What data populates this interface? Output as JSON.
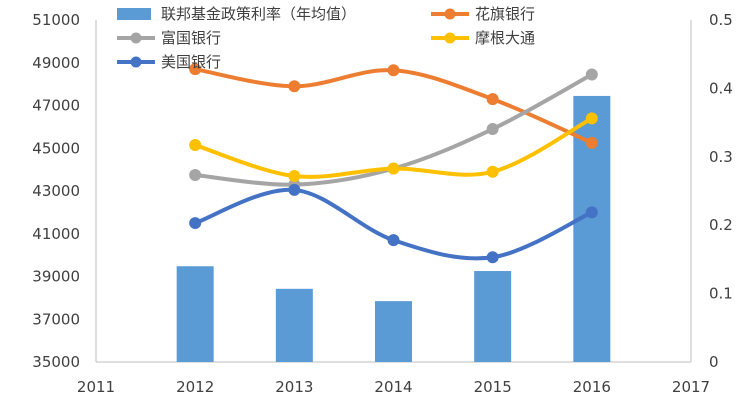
{
  "chart_data": {
    "type": "bar+line",
    "categories": [
      "2012",
      "2013",
      "2014",
      "2015",
      "2016"
    ],
    "x_ticks": [
      "2011",
      "2012",
      "2013",
      "2014",
      "2015",
      "2016",
      "2017"
    ],
    "bar_series": {
      "name": "联邦基金政策利率（年均值）",
      "axis": "right",
      "color": "#5b9bd5",
      "values": [
        0.14,
        0.107,
        0.089,
        0.133,
        0.389
      ]
    },
    "line_series": [
      {
        "name": "花旗银行",
        "color": "#ed7d31",
        "values": [
          48700,
          47900,
          48650,
          47300,
          45250
        ]
      },
      {
        "name": "富国银行",
        "color": "#a5a5a5",
        "values": [
          43750,
          43300,
          44050,
          45900,
          48450
        ]
      },
      {
        "name": "摩根大通",
        "color": "#ffc000",
        "values": [
          45150,
          43700,
          44050,
          43900,
          46400
        ]
      },
      {
        "name": "美国银行",
        "color": "#4472c4",
        "values": [
          41500,
          43050,
          40700,
          39900,
          42000
        ]
      }
    ],
    "y_left": {
      "min": 35000,
      "max": 51000,
      "ticks": [
        "35000",
        "37000",
        "39000",
        "41000",
        "43000",
        "45000",
        "47000",
        "49000",
        "51000"
      ]
    },
    "y_right": {
      "min": 0,
      "max": 0.5,
      "ticks": [
        "0",
        "0.1",
        "0.2",
        "0.3",
        "0.4",
        "0.5"
      ]
    },
    "legend_position": "top"
  }
}
